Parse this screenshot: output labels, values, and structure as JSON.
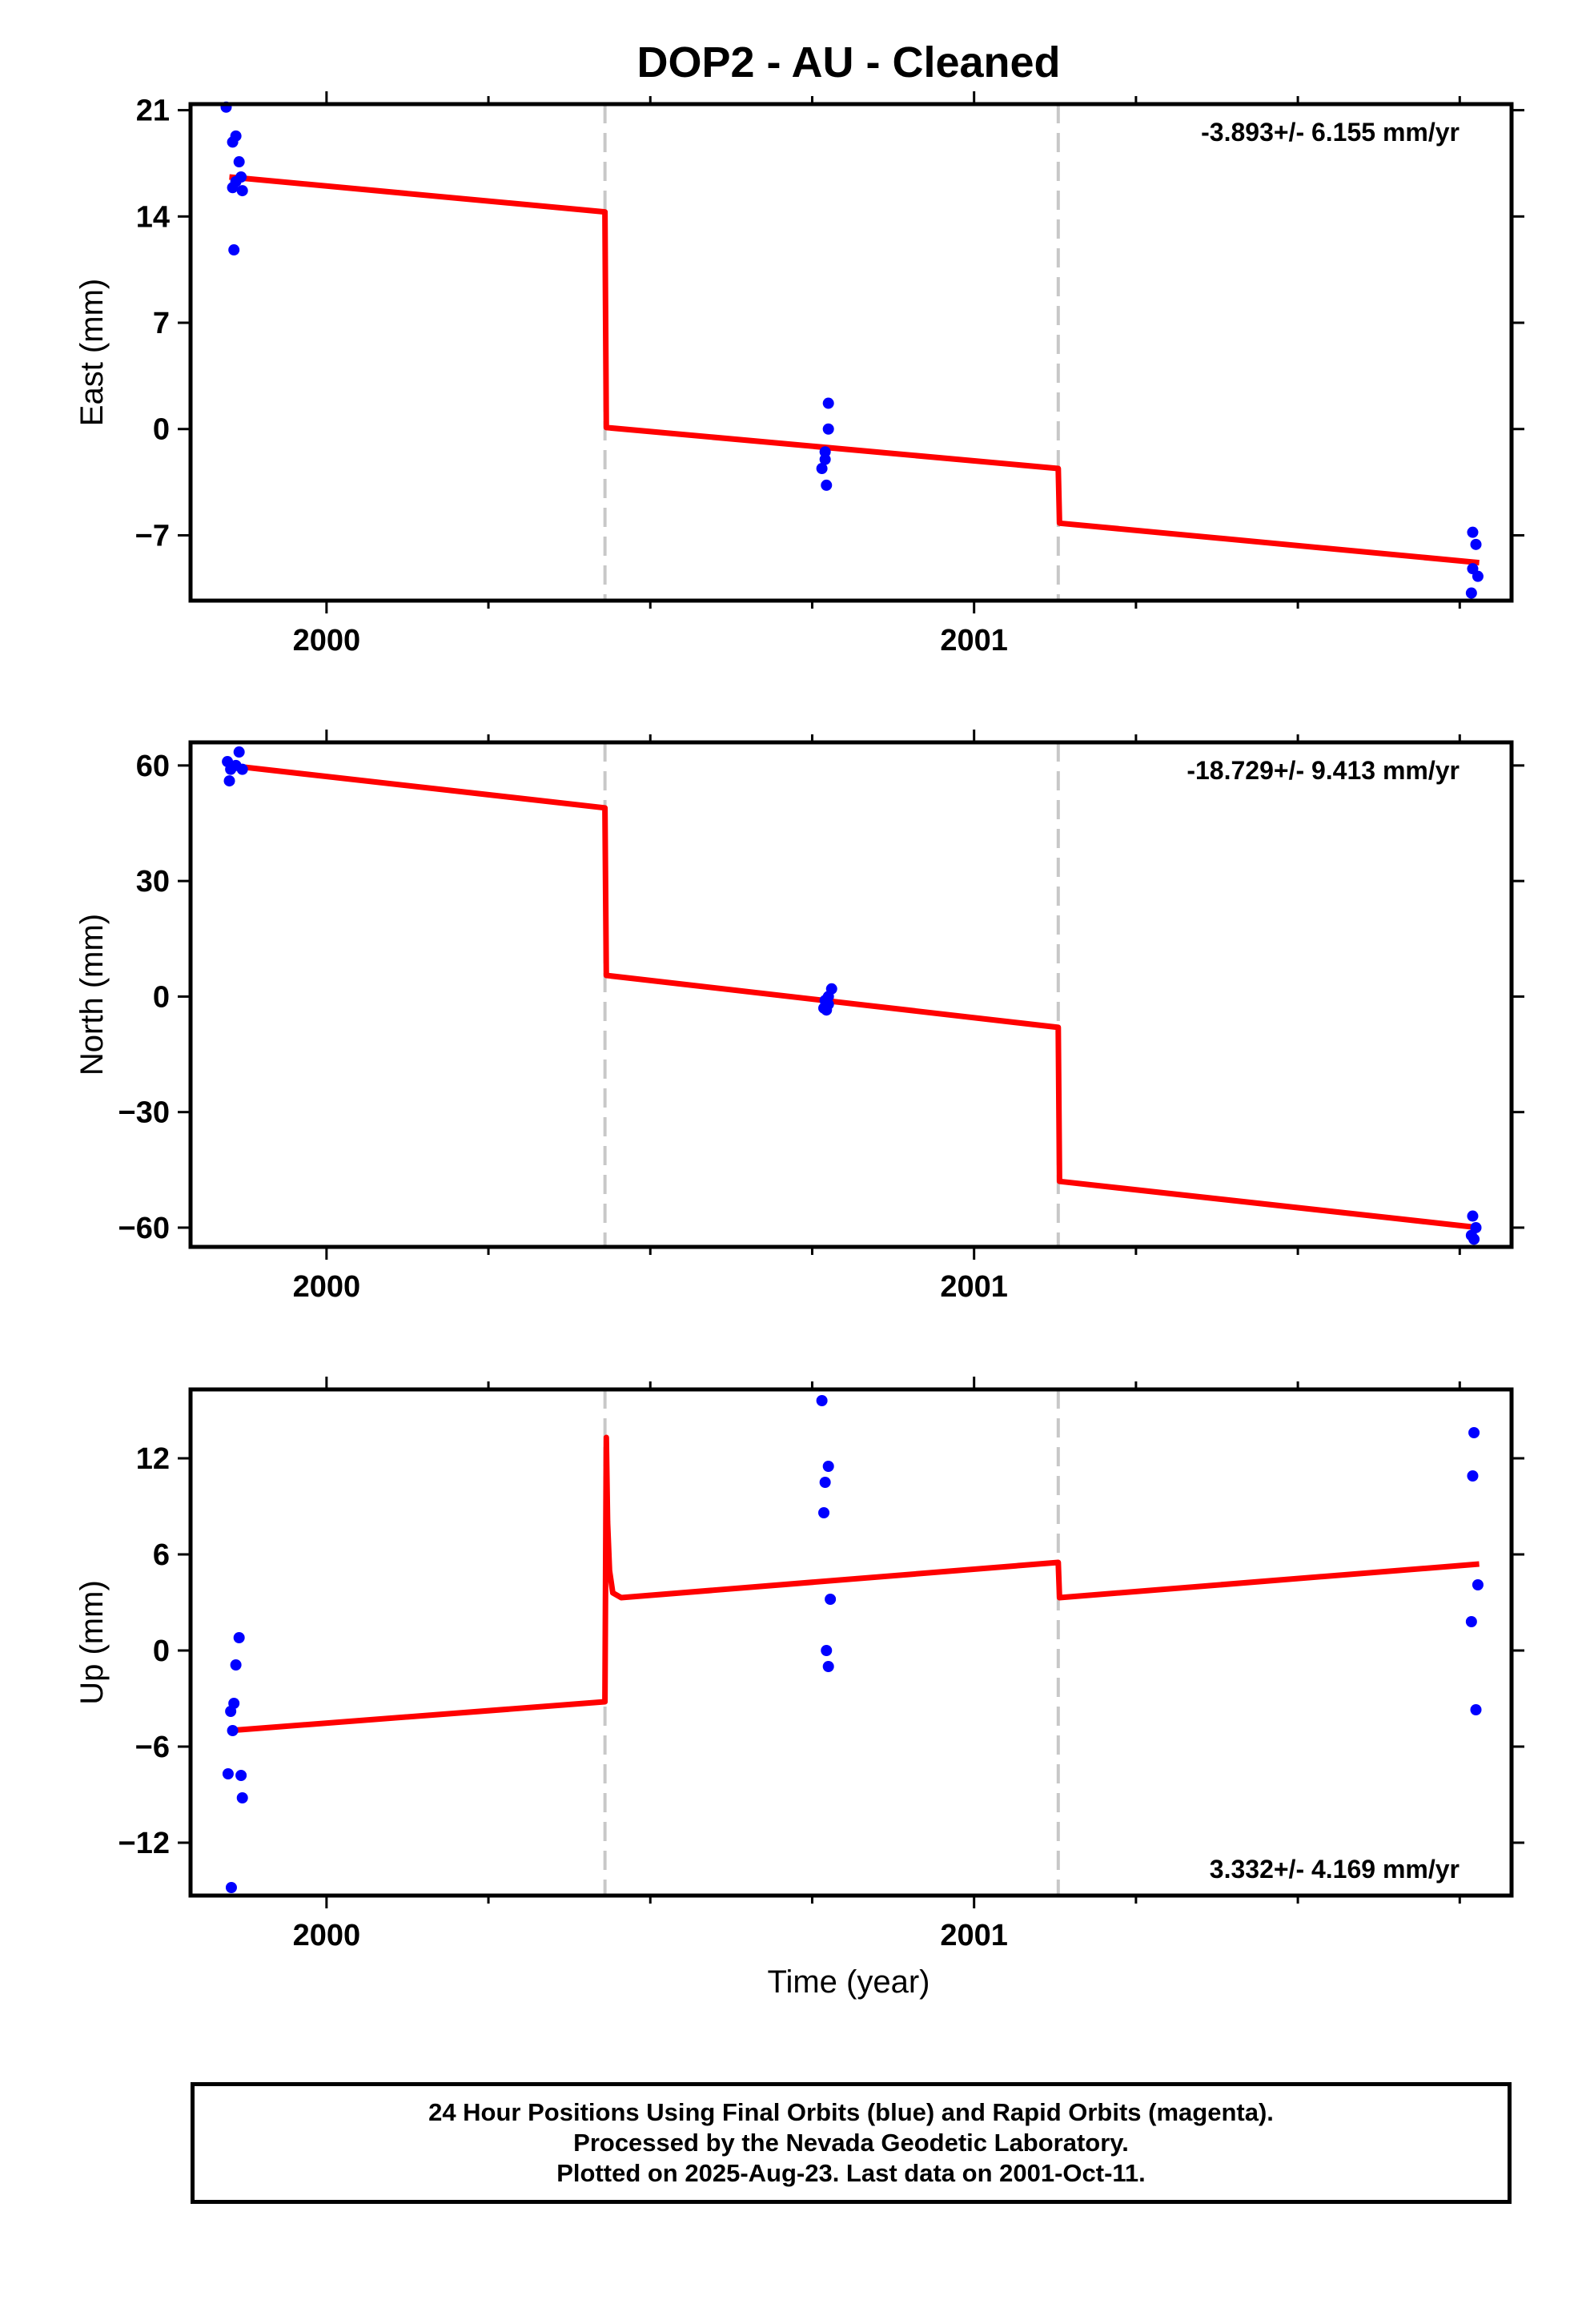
{
  "title": "DOP2  - AU - Cleaned",
  "x_label": "Time (year)",
  "x_ticks": [
    2000,
    2001
  ],
  "footer": {
    "line1": "24 Hour Positions Using Final Orbits (blue) and Rapid Orbits (magenta).",
    "line2": "Processed by the Nevada Geodetic Laboratory.",
    "line3": "Plotted on 2025-Aug-23. Last data on 2001-Oct-11."
  },
  "colors": {
    "final_orbits": "#0000ff",
    "model": "#ff0000",
    "breaks": "#c8c8c8"
  },
  "chart_data": [
    {
      "type": "scatter",
      "name": "east",
      "ylabel": "East (mm)",
      "rate_text": "-3.893+/- 6.155 mm/yr",
      "rate_position": "top-right",
      "xlim": [
        1999.79,
        2001.83
      ],
      "ylim": [
        -11.3,
        21.4
      ],
      "yticks": [
        -7,
        0,
        7,
        14,
        21
      ],
      "break_x": [
        2000.43,
        2001.13
      ],
      "points": [
        [
          1999.845,
          21.2
        ],
        [
          1999.855,
          18.9
        ],
        [
          1999.86,
          19.3
        ],
        [
          1999.855,
          15.9
        ],
        [
          1999.86,
          16.3
        ],
        [
          1999.865,
          17.6
        ],
        [
          1999.868,
          16.6
        ],
        [
          1999.87,
          15.7
        ],
        [
          1999.857,
          11.8
        ],
        [
          2000.775,
          1.7
        ],
        [
          2000.775,
          0.0
        ],
        [
          2000.77,
          -1.5
        ],
        [
          2000.77,
          -2.0
        ],
        [
          2000.765,
          -2.6
        ],
        [
          2000.772,
          -3.7
        ],
        [
          2001.77,
          -6.8
        ],
        [
          2001.775,
          -7.6
        ],
        [
          2001.77,
          -9.2
        ],
        [
          2001.778,
          -9.7
        ],
        [
          2001.768,
          -10.8
        ]
      ],
      "model": [
        [
          1999.85,
          16.6
        ],
        [
          2000.43,
          14.3
        ],
        [
          2000.432,
          0.1
        ],
        [
          2001.13,
          -2.6
        ],
        [
          2001.132,
          -6.2
        ],
        [
          2001.78,
          -8.8
        ]
      ]
    },
    {
      "type": "scatter",
      "name": "north",
      "ylabel": "North (mm)",
      "rate_text": "-18.729+/- 9.413 mm/yr",
      "rate_position": "top-right",
      "xlim": [
        1999.79,
        2001.83
      ],
      "ylim": [
        -65,
        66
      ],
      "yticks": [
        -60,
        -30,
        0,
        30,
        60
      ],
      "break_x": [
        2000.43,
        2001.13
      ],
      "points": [
        [
          1999.847,
          61.0
        ],
        [
          1999.852,
          59.0
        ],
        [
          1999.86,
          60.0
        ],
        [
          1999.865,
          63.5
        ],
        [
          1999.87,
          59.0
        ],
        [
          1999.85,
          56.0
        ],
        [
          2000.78,
          2.0
        ],
        [
          2000.775,
          0.0
        ],
        [
          2000.77,
          -1.0
        ],
        [
          2000.775,
          -2.0
        ],
        [
          2000.768,
          -3.0
        ],
        [
          2000.772,
          -3.5
        ],
        [
          2001.77,
          -57.0
        ],
        [
          2001.775,
          -60.0
        ],
        [
          2001.768,
          -62.0
        ],
        [
          2001.772,
          -63.0
        ]
      ],
      "model": [
        [
          1999.85,
          60.0
        ],
        [
          2000.43,
          49.0
        ],
        [
          2000.432,
          5.5
        ],
        [
          2001.13,
          -8.0
        ],
        [
          2001.132,
          -48.0
        ],
        [
          2001.78,
          -60.0
        ]
      ]
    },
    {
      "type": "scatter",
      "name": "up",
      "ylabel": "Up (mm)",
      "rate_text": "3.332+/- 4.169 mm/yr",
      "rate_position": "bottom-right",
      "xlim": [
        1999.79,
        2001.83
      ],
      "ylim": [
        -15.3,
        16.3
      ],
      "yticks": [
        -12,
        -6,
        0,
        6,
        12
      ],
      "break_x": [
        2000.43,
        2001.13
      ],
      "points": [
        [
          1999.865,
          0.8
        ],
        [
          1999.86,
          -0.9
        ],
        [
          1999.857,
          -3.3
        ],
        [
          1999.852,
          -3.8
        ],
        [
          1999.855,
          -5.0
        ],
        [
          1999.848,
          -7.7
        ],
        [
          1999.868,
          -7.8
        ],
        [
          1999.87,
          -9.2
        ],
        [
          1999.853,
          -14.8
        ],
        [
          2000.765,
          15.6
        ],
        [
          2000.77,
          10.5
        ],
        [
          2000.775,
          11.5
        ],
        [
          2000.768,
          8.6
        ],
        [
          2000.778,
          3.2
        ],
        [
          2000.772,
          0.0
        ],
        [
          2000.775,
          -1.0
        ],
        [
          2001.772,
          13.6
        ],
        [
          2001.77,
          10.9
        ],
        [
          2001.778,
          4.1
        ],
        [
          2001.768,
          1.8
        ],
        [
          2001.775,
          -3.7
        ]
      ],
      "model": [
        [
          1999.85,
          -5.0
        ],
        [
          2000.43,
          -3.2
        ],
        [
          2000.432,
          13.3
        ],
        [
          2000.434,
          8.0
        ],
        [
          2000.437,
          5.0
        ],
        [
          2000.442,
          3.6
        ],
        [
          2000.455,
          3.3
        ],
        [
          2001.13,
          5.5
        ],
        [
          2001.132,
          3.3
        ],
        [
          2001.78,
          5.4
        ]
      ]
    }
  ]
}
